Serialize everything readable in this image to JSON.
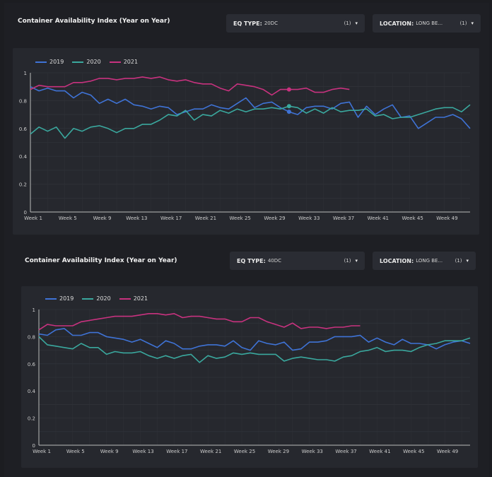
{
  "sections": [
    {
      "title": "Container Availability Index (Year on Year)",
      "filters": [
        {
          "label": "EQ TYPE:",
          "value": "20DC",
          "count": "(1)"
        },
        {
          "label": "LOCATION:",
          "value": "LONG BE...",
          "count": "(1)"
        }
      ]
    },
    {
      "title": "Container Availability Index (Year on Year)",
      "filters": [
        {
          "label": "EQ TYPE:",
          "value": "40DC",
          "count": "(1)"
        },
        {
          "label": "LOCATION:",
          "value": "LONG BE...",
          "count": "(1)"
        }
      ]
    }
  ],
  "chart_data": [
    {
      "type": "line",
      "x_tick_labels": [
        "Week 1",
        "Week 5",
        "Week 9",
        "Week 13",
        "Week 17",
        "Week 21",
        "Week 25",
        "Week 29",
        "Week 33",
        "Week 37",
        "Week 41",
        "Week 45",
        "Week 49"
      ],
      "y_tick_labels": [
        "0",
        "0.2",
        "0.4",
        "0.6",
        "0.8",
        "1"
      ],
      "ylim": [
        0,
        1
      ],
      "xlim": [
        1,
        52
      ],
      "grid": true,
      "legend": "top-left",
      "highlight_week": 31,
      "series": [
        {
          "name": "2019",
          "color": "#3f73d6",
          "values": [
            0.9,
            0.87,
            0.89,
            0.87,
            0.87,
            0.82,
            0.86,
            0.84,
            0.78,
            0.81,
            0.78,
            0.81,
            0.77,
            0.76,
            0.74,
            0.76,
            0.75,
            0.7,
            0.72,
            0.74,
            0.74,
            0.77,
            0.75,
            0.74,
            0.78,
            0.82,
            0.75,
            0.78,
            0.79,
            0.75,
            0.72,
            0.7,
            0.75,
            0.76,
            0.76,
            0.74,
            0.78,
            0.79,
            0.68,
            0.76,
            0.7,
            0.74,
            0.77,
            0.68,
            0.69,
            0.6,
            0.64,
            0.68,
            0.68,
            0.7,
            0.67,
            0.6
          ]
        },
        {
          "name": "2020",
          "color": "#3aa89e",
          "values": [
            0.56,
            0.61,
            0.58,
            0.61,
            0.53,
            0.6,
            0.58,
            0.61,
            0.62,
            0.6,
            0.57,
            0.6,
            0.6,
            0.63,
            0.63,
            0.66,
            0.7,
            0.69,
            0.73,
            0.66,
            0.7,
            0.69,
            0.73,
            0.71,
            0.74,
            0.72,
            0.74,
            0.74,
            0.75,
            0.74,
            0.76,
            0.75,
            0.71,
            0.74,
            0.71,
            0.75,
            0.72,
            0.73,
            0.73,
            0.74,
            0.69,
            0.7,
            0.67,
            0.68,
            0.68,
            0.7,
            0.72,
            0.74,
            0.75,
            0.75,
            0.72,
            0.77
          ]
        },
        {
          "name": "2021",
          "color": "#c8327f",
          "values": [
            0.88,
            0.91,
            0.9,
            0.9,
            0.9,
            0.93,
            0.93,
            0.94,
            0.96,
            0.96,
            0.95,
            0.96,
            0.96,
            0.97,
            0.96,
            0.97,
            0.95,
            0.94,
            0.95,
            0.93,
            0.92,
            0.92,
            0.89,
            0.87,
            0.92,
            0.91,
            0.9,
            0.88,
            0.84,
            0.88,
            0.88,
            0.88,
            0.89,
            0.86,
            0.86,
            0.88,
            0.89,
            0.88
          ]
        }
      ]
    },
    {
      "type": "line",
      "x_tick_labels": [
        "Week 1",
        "Week 5",
        "Week 9",
        "Week 13",
        "Week 17",
        "Week 21",
        "Week 25",
        "Week 29",
        "Week 33",
        "Week 37",
        "Week 41",
        "Week 45",
        "Week 49"
      ],
      "y_tick_labels": [
        "0",
        "0.2",
        "0.4",
        "0.6",
        "0.8",
        "1"
      ],
      "ylim": [
        0,
        1
      ],
      "xlim": [
        1,
        52
      ],
      "grid": true,
      "legend": "top-left",
      "series": [
        {
          "name": "2019",
          "color": "#3f73d6",
          "values": [
            0.82,
            0.81,
            0.85,
            0.86,
            0.81,
            0.81,
            0.83,
            0.83,
            0.8,
            0.79,
            0.78,
            0.76,
            0.78,
            0.75,
            0.72,
            0.77,
            0.75,
            0.71,
            0.71,
            0.73,
            0.74,
            0.74,
            0.73,
            0.77,
            0.72,
            0.7,
            0.77,
            0.75,
            0.74,
            0.76,
            0.7,
            0.71,
            0.76,
            0.76,
            0.77,
            0.8,
            0.8,
            0.8,
            0.81,
            0.76,
            0.79,
            0.76,
            0.74,
            0.78,
            0.75,
            0.75,
            0.74,
            0.71,
            0.74,
            0.76,
            0.77,
            0.75
          ]
        },
        {
          "name": "2020",
          "color": "#3aa89e",
          "values": [
            0.8,
            0.74,
            0.73,
            0.72,
            0.71,
            0.75,
            0.72,
            0.72,
            0.67,
            0.69,
            0.68,
            0.68,
            0.69,
            0.66,
            0.64,
            0.66,
            0.64,
            0.66,
            0.67,
            0.61,
            0.66,
            0.64,
            0.65,
            0.68,
            0.67,
            0.68,
            0.67,
            0.67,
            0.67,
            0.62,
            0.64,
            0.65,
            0.64,
            0.63,
            0.63,
            0.62,
            0.65,
            0.66,
            0.69,
            0.7,
            0.72,
            0.69,
            0.7,
            0.7,
            0.69,
            0.72,
            0.74,
            0.75,
            0.77,
            0.77,
            0.77,
            0.79
          ]
        },
        {
          "name": "2021",
          "color": "#c8327f",
          "values": [
            0.85,
            0.89,
            0.88,
            0.88,
            0.88,
            0.91,
            0.92,
            0.93,
            0.94,
            0.95,
            0.95,
            0.95,
            0.96,
            0.97,
            0.97,
            0.96,
            0.97,
            0.94,
            0.95,
            0.95,
            0.94,
            0.93,
            0.93,
            0.91,
            0.91,
            0.94,
            0.94,
            0.91,
            0.89,
            0.87,
            0.9,
            0.86,
            0.87,
            0.87,
            0.86,
            0.87,
            0.87,
            0.88,
            0.88
          ]
        }
      ]
    }
  ]
}
